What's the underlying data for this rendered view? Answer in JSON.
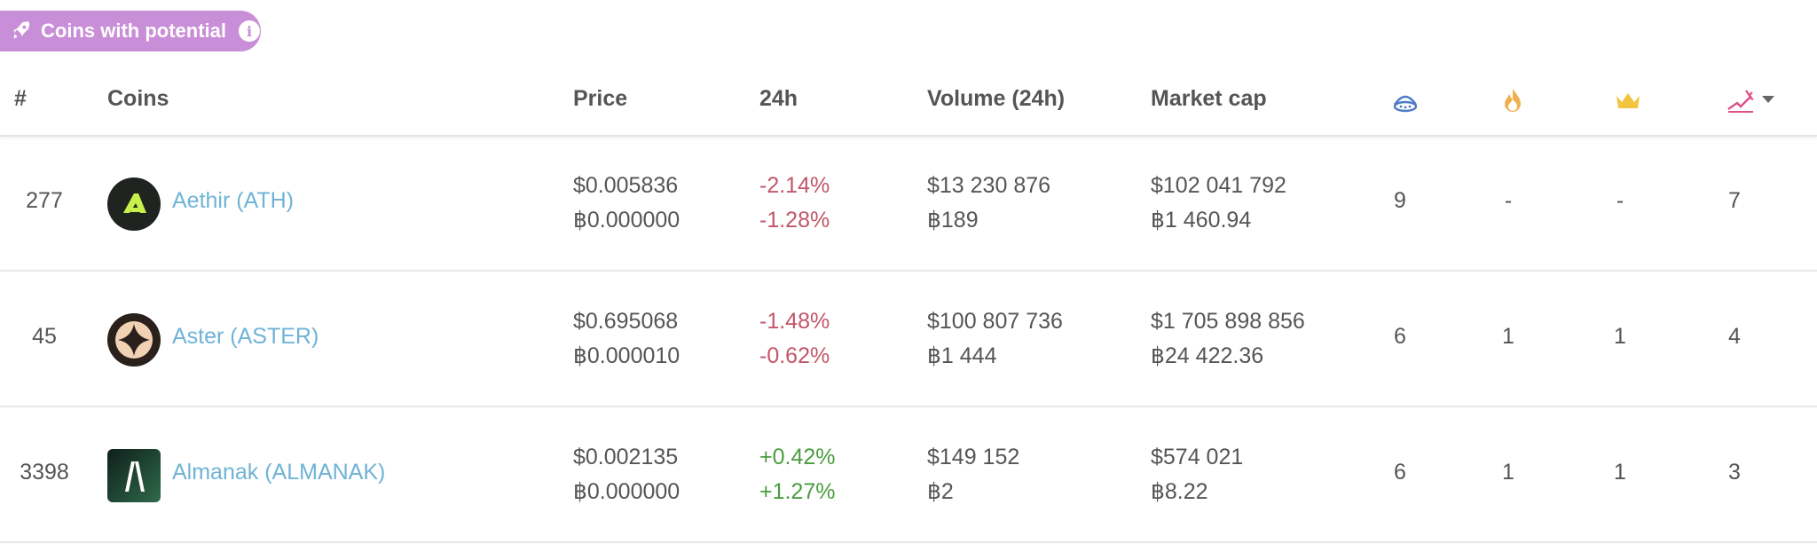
{
  "badge": {
    "label": "Coins with potential",
    "info_icon": "info-icon",
    "icon": "rocket-icon"
  },
  "columns": {
    "rank": "#",
    "coins": "Coins",
    "price": "Price",
    "change_24h": "24h",
    "volume_24h": "Volume (24h)",
    "market_cap": "Market cap",
    "icon_col_1": "watch-icon",
    "icon_col_2": "fire-icon",
    "icon_col_3": "crown-icon",
    "icon_col_4": "bull-icon"
  },
  "colors": {
    "accent": "#c98ed8",
    "link": "#6fb3d6",
    "negative": "#c2566a",
    "positive": "#4a9d3f"
  },
  "rows": [
    {
      "rank": "277",
      "name": "Aethir (ATH)",
      "price_usd": "$0.005836",
      "price_btc": "฿0.000000",
      "change_usd": "-2.14%",
      "change_btc": "-1.28%",
      "volume_usd": "$13 230 876",
      "volume_btc": "฿189",
      "mcap_usd": "$102 041 792",
      "mcap_btc": "฿1 460.94",
      "c1": "9",
      "c2": "-",
      "c3": "-",
      "c4": "7"
    },
    {
      "rank": "45",
      "name": "Aster (ASTER)",
      "price_usd": "$0.695068",
      "price_btc": "฿0.000010",
      "change_usd": "-1.48%",
      "change_btc": "-0.62%",
      "volume_usd": "$100 807 736",
      "volume_btc": "฿1 444",
      "mcap_usd": "$1 705 898 856",
      "mcap_btc": "฿24 422.36",
      "c1": "6",
      "c2": "1",
      "c3": "1",
      "c4": "4"
    },
    {
      "rank": "3398",
      "name": "Almanak (ALMANAK)",
      "price_usd": "$0.002135",
      "price_btc": "฿0.000000",
      "change_usd": "+0.42%",
      "change_btc": "+1.27%",
      "volume_usd": "$149 152",
      "volume_btc": "฿2",
      "mcap_usd": "$574 021",
      "mcap_btc": "฿8.22",
      "c1": "6",
      "c2": "1",
      "c3": "1",
      "c4": "3"
    }
  ]
}
